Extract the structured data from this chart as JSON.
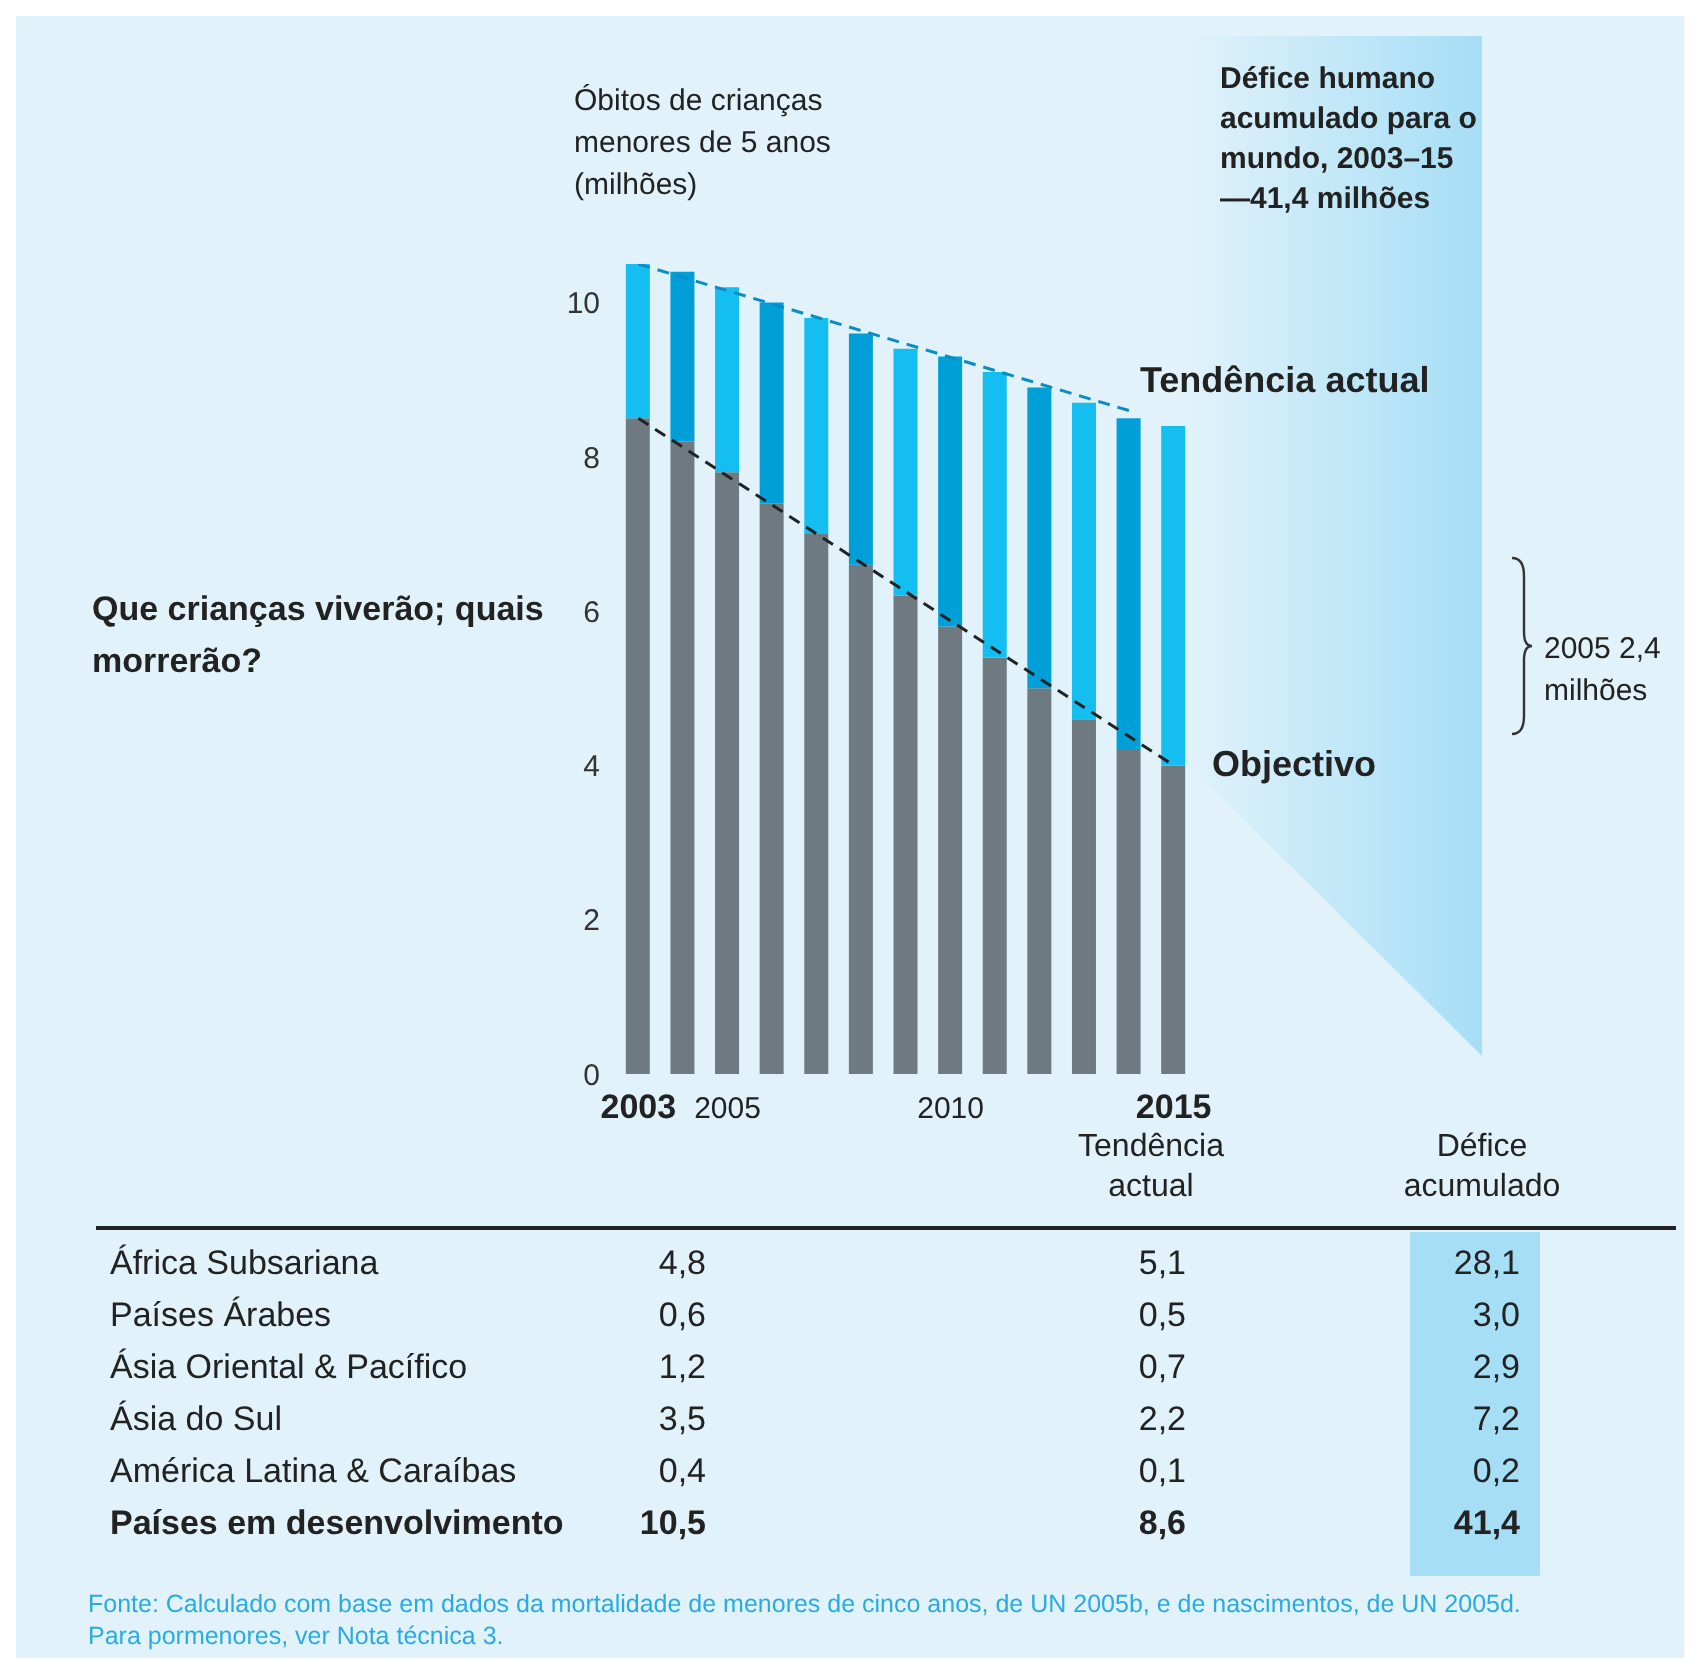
{
  "chart_data": {
    "type": "bar",
    "stacked": true,
    "title": "Que crianças viverão; quais morrerão?",
    "ylabel": "Óbitos de crianças menores de 5 anos (milhões)",
    "categories": [
      "2003",
      null,
      "2005",
      null,
      null,
      null,
      null,
      "2010",
      null,
      null,
      null,
      null,
      "2015"
    ],
    "ylim": [
      0,
      10.5
    ],
    "yticks": [
      0,
      2,
      4,
      6,
      8,
      10
    ],
    "grid": false,
    "series": [
      {
        "color": "#6f7a80",
        "values": [
          8.5,
          8.2,
          7.8,
          7.4,
          7.0,
          6.6,
          6.2,
          5.8,
          5.4,
          5.0,
          4.6,
          4.2,
          4.0
        ]
      },
      {
        "colors": [
          "#15bef0",
          "#009fd8",
          "#15bef0",
          "#009fd8",
          "#15bef0",
          "#009fd8",
          "#15bef0",
          "#009fd8",
          "#15bef0",
          "#009fd8",
          "#15bef0",
          "#009fd8",
          "#15bef0"
        ],
        "values": [
          2.0,
          2.2,
          2.4,
          2.6,
          2.8,
          3.0,
          3.2,
          3.5,
          3.7,
          3.9,
          4.1,
          4.3,
          4.4
        ]
      },
      {
        "type": "line",
        "color": "#0a8cc4",
        "line_style": "dashed",
        "marker": "none",
        "values": [
          10.5,
          null,
          null,
          null,
          null,
          null,
          null,
          null,
          null,
          null,
          null,
          8.6,
          null
        ]
      },
      {
        "type": "line",
        "color": "#222222",
        "line_style": "dashed",
        "marker": "none",
        "values": [
          8.5,
          null,
          null,
          null,
          null,
          null,
          null,
          null,
          null,
          null,
          null,
          null,
          4.0
        ]
      }
    ],
    "annotations": [
      "Tendência actual",
      "Objectivo",
      "Défice humano acumulado para o mundo, 2003–15—41,4 milhões",
      "2005 2,4 milhões",
      "Tendência actual",
      "Défice acumulado",
      "África Subsariana",
      "4,8",
      "5,1",
      "28,1",
      "Países Árabes",
      "0,6",
      "0,5",
      "3,0",
      "Ásia Oriental & Pacífico",
      "1,2",
      "0,7",
      "2,9",
      "Ásia do Sul",
      "3,5",
      "2,2",
      "7,2",
      "América Latina & Caraíbas",
      "0,4",
      "0,1",
      "0,2",
      "Países em desenvolvimento",
      "10,5",
      "8,6",
      "41,4",
      "Fonte: Calculado com base em dados da mortalidade de menores de cinco anos, de UN 2005b, e de nascimentos, de  UN 2005d. Para pormenores, ver Nota técnica 3."
    ]
  }
}
